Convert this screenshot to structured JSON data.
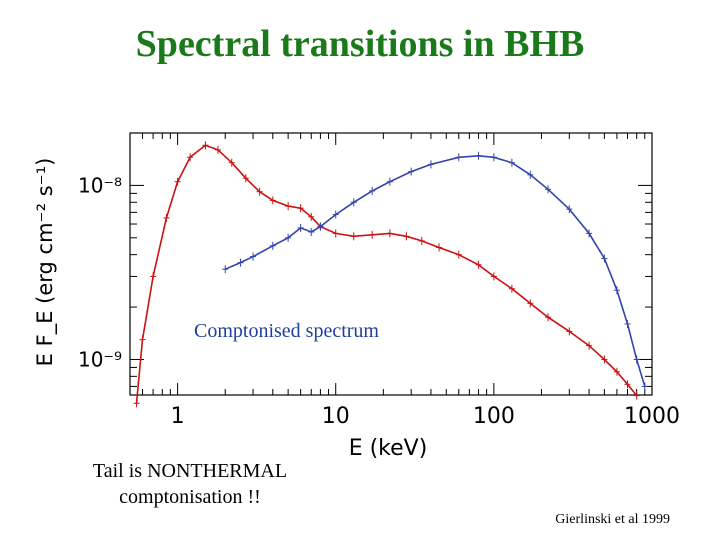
{
  "slide": {
    "title": "Spectral transitions in BHB",
    "comptonised_label": "Comptonised spectrum",
    "tail_label_line1": "Tail is NONTHERMAL",
    "tail_label_line2": "comptonisation !!",
    "credit": "Gierlinski et al 1999"
  },
  "colors": {
    "title": "#1a7a1a",
    "soft_state": "#cc1111",
    "hard_state": "#3344aa",
    "caption_blue": "#1f3fa0"
  },
  "chart_data": {
    "type": "line",
    "xscale": "log",
    "yscale": "log",
    "xlim": [
      0.5,
      1000
    ],
    "ylim": [
      6.25e-10,
      2e-08
    ],
    "xlabel": "E  (keV)",
    "ylabel": "E F_E  (erg cm⁻² s⁻¹)",
    "xticks": [
      {
        "value": 1,
        "label": "1"
      },
      {
        "value": 10,
        "label": "10"
      },
      {
        "value": 100,
        "label": "100"
      },
      {
        "value": 1000,
        "label": "1000"
      }
    ],
    "yticks": [
      {
        "value": 1e-09,
        "label": "10⁻⁹"
      },
      {
        "value": 1e-08,
        "label": "10⁻⁸"
      }
    ],
    "series": [
      {
        "color": "#cc1111",
        "x": [
          0.55,
          0.6,
          0.7,
          0.85,
          1.0,
          1.2,
          1.5,
          1.8,
          2.2,
          2.7,
          3.3,
          4.0,
          5.0,
          6.0,
          7.0,
          8.0,
          10,
          13,
          17,
          22,
          28,
          35,
          45,
          60,
          80,
          100,
          130,
          170,
          220,
          300,
          400,
          500,
          600,
          700,
          800
        ],
        "y": [
          5.6e-10,
          1.3e-09,
          3e-09,
          6.5e-09,
          1.05e-08,
          1.45e-08,
          1.7e-08,
          1.6e-08,
          1.35e-08,
          1.1e-08,
          9.2e-09,
          8.2e-09,
          7.6e-09,
          7.4e-09,
          6.6e-09,
          5.8e-09,
          5.3e-09,
          5.1e-09,
          5.2e-09,
          5.3e-09,
          5.1e-09,
          4.8e-09,
          4.4e-09,
          4e-09,
          3.5e-09,
          3e-09,
          2.55e-09,
          2.1e-09,
          1.75e-09,
          1.45e-09,
          1.2e-09,
          1e-09,
          8.5e-10,
          7.2e-10,
          6.2e-10
        ]
      },
      {
        "color": "#3344aa",
        "x": [
          2,
          2.5,
          3,
          4,
          5,
          6,
          7,
          8,
          10,
          13,
          17,
          22,
          30,
          40,
          60,
          80,
          100,
          130,
          170,
          220,
          300,
          400,
          500,
          600,
          700,
          800,
          900
        ],
        "y": [
          3.3e-09,
          3.6e-09,
          3.9e-09,
          4.5e-09,
          5e-09,
          5.7e-09,
          5.4e-09,
          5.8e-09,
          6.8e-09,
          8e-09,
          9.3e-09,
          1.05e-08,
          1.2e-08,
          1.32e-08,
          1.45e-08,
          1.48e-08,
          1.45e-08,
          1.35e-08,
          1.15e-08,
          9.5e-09,
          7.3e-09,
          5.3e-09,
          3.8e-09,
          2.5e-09,
          1.6e-09,
          1e-09,
          7e-10
        ]
      }
    ]
  }
}
